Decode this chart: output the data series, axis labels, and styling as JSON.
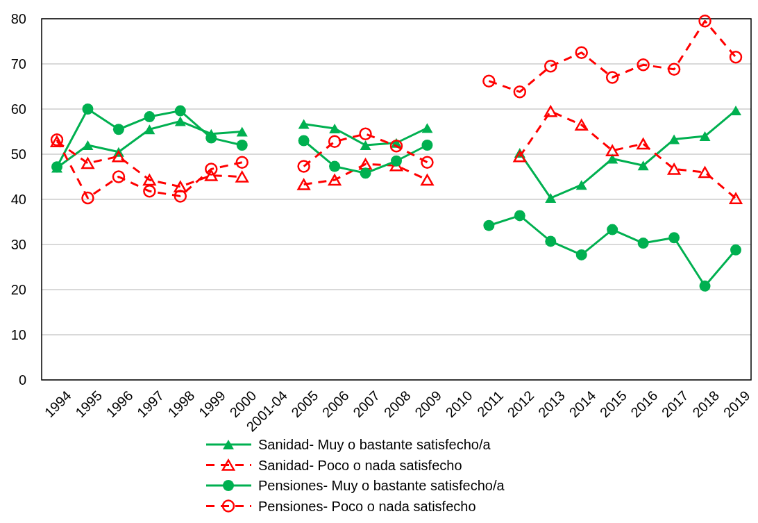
{
  "chart_data": {
    "type": "line",
    "categories": [
      "1994",
      "1995",
      "1996",
      "1997",
      "1998",
      "1999",
      "2000",
      "2001-04",
      "2005",
      "2006",
      "2007",
      "2008",
      "2009",
      "2010",
      "2011",
      "2012",
      "2013",
      "2014",
      "2015",
      "2016",
      "2017",
      "2018",
      "2019"
    ],
    "ylim": [
      0,
      80
    ],
    "yticks": [
      0,
      10,
      20,
      30,
      40,
      50,
      60,
      70,
      80
    ],
    "grid": "y",
    "legend": "bottom",
    "series": [
      {
        "name": "Sanidad- Muy o bastante satisfecho/a",
        "color": "#00b050",
        "marker": "triangle",
        "line_style": "solid",
        "values": [
          47,
          52,
          50.5,
          55.5,
          57.3,
          54.5,
          55,
          null,
          56.7,
          55.7,
          52,
          52.5,
          55.8,
          null,
          null,
          50.3,
          40.3,
          43.2,
          49,
          47.5,
          53.3,
          54,
          59.7
        ]
      },
      {
        "name": "Sanidad- Poco o nada satisfecho",
        "color": "#ff0000",
        "marker": "triangle",
        "line_style": "dashed",
        "values": [
          52.8,
          48,
          49.5,
          44.3,
          42.8,
          45.3,
          45,
          null,
          43.3,
          44.3,
          47.8,
          47.5,
          44.3,
          null,
          null,
          49.5,
          59.5,
          56.5,
          50.8,
          52.3,
          46.7,
          46,
          40.2
        ]
      },
      {
        "name": "Pensiones- Muy o bastante satisfecho/a",
        "color": "#00b050",
        "marker": "circle",
        "line_style": "solid",
        "values": [
          47.2,
          60,
          55.5,
          58.3,
          59.6,
          53.6,
          52,
          null,
          53,
          47.3,
          45.8,
          48.5,
          52,
          null,
          34.2,
          36.4,
          30.7,
          27.7,
          33.3,
          30.3,
          31.5,
          20.8,
          28.8
        ]
      },
      {
        "name": "Pensiones- Poco o nada satisfecho",
        "color": "#ff0000",
        "marker": "circle",
        "line_style": "dashed",
        "values": [
          53.2,
          40.3,
          45,
          41.8,
          40.7,
          46.7,
          48.2,
          null,
          47.3,
          52.8,
          54.5,
          51.8,
          48.2,
          null,
          66.2,
          63.8,
          69.5,
          72.5,
          67,
          69.8,
          68.8,
          79.5,
          71.5
        ]
      }
    ]
  }
}
